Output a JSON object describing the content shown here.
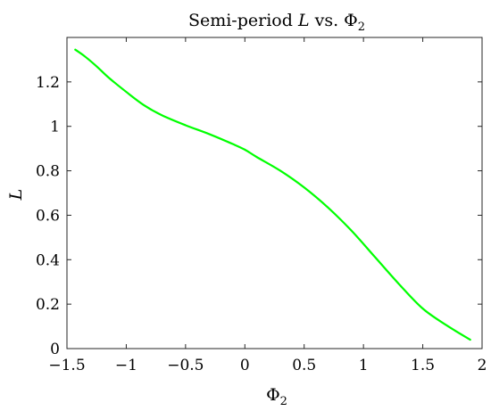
{
  "chart_data": {
    "type": "line",
    "title": {
      "prefix": "Semi-period ",
      "var": "L",
      "mid": " vs. ",
      "sym": "Φ",
      "sub": "2"
    },
    "xlabel": {
      "sym": "Φ",
      "sub": "2"
    },
    "ylabel": "L",
    "xlim": [
      -1.5,
      2
    ],
    "ylim": [
      0,
      1.4
    ],
    "x_ticks": [
      -1.5,
      -1,
      -0.5,
      0,
      0.5,
      1,
      1.5,
      2
    ],
    "x_tick_labels": [
      "−1.5",
      "−1",
      "−0.5",
      "0",
      "0.5",
      "1",
      "1.5",
      "2"
    ],
    "y_ticks": [
      0,
      0.2,
      0.4,
      0.6,
      0.8,
      1,
      1.2
    ],
    "y_tick_labels": [
      "0",
      "0.2",
      "0.4",
      "0.6",
      "0.8",
      "1",
      "1.2"
    ],
    "grid": false,
    "series": [
      {
        "color": "#00ff00",
        "x": [
          -1.43,
          -1.35,
          -1.25,
          -1.15,
          -1.0,
          -0.85,
          -0.7,
          -0.5,
          -0.3,
          -0.1,
          0.0,
          0.1,
          0.3,
          0.5,
          0.7,
          0.9,
          1.1,
          1.3,
          1.5,
          1.7,
          1.9
        ],
        "y": [
          1.345,
          1.315,
          1.27,
          1.22,
          1.155,
          1.095,
          1.05,
          1.005,
          0.965,
          0.92,
          0.895,
          0.862,
          0.8,
          0.725,
          0.635,
          0.53,
          0.41,
          0.29,
          0.18,
          0.105,
          0.04
        ]
      }
    ]
  }
}
